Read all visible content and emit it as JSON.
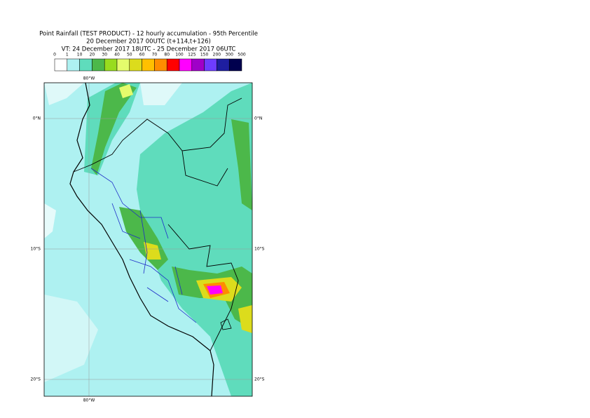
{
  "header": {
    "title_lines": [
      "Point Rainfall (TEST PRODUCT) - 12 hourly accumulation - 95th Percentile",
      "20 December 2017 00UTC (t+114,t+126)",
      "VT: 24 December 2017 18UTC - 25 December 2017 06UTC"
    ]
  },
  "legend": {
    "labels": [
      "0",
      "1",
      "10",
      "20",
      "30",
      "40",
      "50",
      "60",
      "70",
      "80",
      "100",
      "125",
      "150",
      "200",
      "300",
      "500"
    ],
    "colors": [
      "#ffffff",
      "#aef1f1",
      "#5fdcbc",
      "#4cb84a",
      "#98dc1e",
      "#e4fb6c",
      "#dcdc1c",
      "#ffc000",
      "#ff8c00",
      "#ff0000",
      "#ff00ff",
      "#a000c8",
      "#6e3cff",
      "#1e1ea0",
      "#00004e"
    ]
  },
  "map": {
    "lon_labels": [
      "80°W"
    ],
    "lat_labels": [
      "0°N",
      "10°S",
      "20°S"
    ]
  }
}
